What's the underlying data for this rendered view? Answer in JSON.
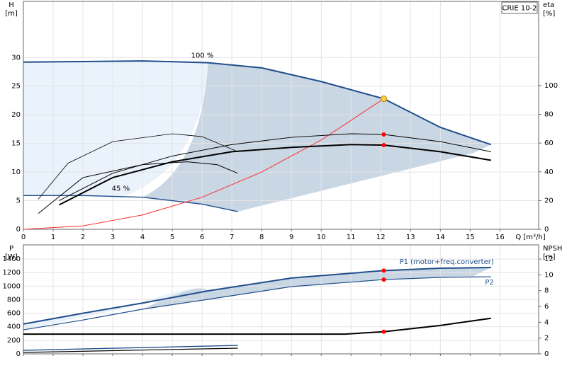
{
  "chart_data": [
    {
      "type": "line",
      "model": "CRIE 10-2",
      "ylabel": "H",
      "yunit": "[m]",
      "y2label": "eta",
      "y2unit": "[%]",
      "xlabel": "Q [m³/h]",
      "xlim": [
        0,
        17.3
      ],
      "xticks": [
        0,
        1,
        2,
        3,
        4,
        5,
        6,
        7,
        8,
        9,
        10,
        11,
        12,
        13,
        14,
        15,
        16
      ],
      "ylim": [
        0,
        39.8
      ],
      "yticks": [
        0,
        5,
        10,
        15,
        20,
        25,
        30
      ],
      "y2lim": [
        0,
        158.6
      ],
      "y2ticks": [
        0,
        20,
        40,
        60,
        80,
        100
      ],
      "grid": true,
      "marker_x": 12.1,
      "annotations": [
        {
          "text": "100 %"
        },
        {
          "text": "45 %"
        }
      ],
      "series": [
        {
          "color": "#1f4e8c",
          "width": 2,
          "marker_color": "#ffd23f",
          "x": [
            0,
            2,
            4,
            6.2,
            8,
            10,
            12.1,
            14,
            15.7
          ],
          "values": [
            29.2,
            29.3,
            29.4,
            29.1,
            28.2,
            25.8,
            22.8,
            17.8,
            14.8
          ]
        },
        {
          "color": "#1f4e8c",
          "width": 1.4,
          "x": [
            0,
            2,
            4,
            6,
            7.2
          ],
          "values": [
            5.9,
            5.9,
            5.6,
            4.4,
            3.1
          ]
        },
        {
          "color": "#ff3030",
          "width": 1,
          "x": [
            0,
            2,
            4,
            6,
            8,
            10,
            12.1
          ],
          "values": [
            0,
            0.6,
            2.5,
            5.6,
            10,
            15.6,
            22.8
          ]
        },
        {
          "axis": "y2",
          "color": "#000000",
          "width": 1,
          "marker_color": "#ff0000",
          "x": [
            1.2,
            3,
            5,
            7,
            9,
            11,
            12.1,
            14,
            15.7
          ],
          "values": [
            20,
            39,
            51,
            59,
            64,
            66.5,
            66,
            61,
            54
          ]
        },
        {
          "axis": "y2",
          "color": "#000000",
          "width": 2,
          "marker_color": "#ff0000",
          "x": [
            1.2,
            3,
            5,
            7,
            9,
            11,
            12.1,
            14,
            15.7
          ],
          "values": [
            17,
            36,
            47,
            54,
            57,
            59,
            58.6,
            54,
            48
          ]
        },
        {
          "axis": "y2",
          "color": "#000000",
          "width": 0.8,
          "x": [
            0.5,
            1.5,
            3,
            5,
            6,
            7.2
          ],
          "values": [
            21,
            46,
            61,
            66.5,
            64.5,
            54
          ]
        },
        {
          "axis": "y2",
          "color": "#000000",
          "width": 1,
          "x": [
            0.5,
            2,
            4,
            5.5,
            6.5,
            7.2
          ],
          "values": [
            11,
            36,
            45,
            47,
            45,
            39
          ]
        }
      ]
    },
    {
      "type": "line",
      "ylabel": "P",
      "yunit": "[W]",
      "y2label": "NPSH",
      "y2unit": "[m]",
      "xlim": [
        0,
        17.3
      ],
      "xticks": [
        0,
        1,
        2,
        3,
        4,
        5,
        6,
        7,
        8,
        9,
        10,
        11,
        12,
        13,
        14,
        15,
        16
      ],
      "xtick_labels": false,
      "ylim": [
        0,
        1610
      ],
      "yticks": [
        0,
        200,
        400,
        600,
        800,
        1000,
        1200,
        1400
      ],
      "y2lim": [
        0,
        13.8
      ],
      "y2ticks": [
        0,
        2,
        4,
        6,
        8,
        10,
        12
      ],
      "grid": true,
      "marker_x": 12.1,
      "series": [
        {
          "name": "P1 (motor+freq.converter)",
          "color": "#1f4e8c",
          "width": 2,
          "marker_color": "#ff0000",
          "x": [
            0,
            2,
            4,
            6.2,
            9,
            12.1,
            14,
            15.7
          ],
          "values": [
            440,
            600,
            750,
            930,
            1120,
            1230,
            1265,
            1275
          ]
        },
        {
          "name": "P2",
          "color": "#1f4e8c",
          "width": 1.2,
          "marker_color": "#ff0000",
          "x": [
            0,
            2,
            4,
            6.2,
            9,
            12.1,
            14,
            15.7
          ],
          "values": [
            355,
            500,
            660,
            805,
            993,
            1097,
            1129,
            1139
          ]
        },
        {
          "color": "#1f4e8c",
          "width": 1.4,
          "x": [
            0,
            7.2
          ],
          "values": [
            52,
            125
          ]
        },
        {
          "color": "#000000",
          "width": 1.2,
          "x": [
            0,
            7.2
          ],
          "values": [
            21,
            84
          ]
        },
        {
          "axis": "y2",
          "color": "#000000",
          "width": 2,
          "marker_color": "#ff0000",
          "x": [
            0,
            6.2,
            10.8,
            12.1,
            14,
            15.7
          ],
          "values": [
            2.5,
            2.5,
            2.5,
            2.8,
            3.6,
            4.5
          ]
        }
      ]
    }
  ]
}
